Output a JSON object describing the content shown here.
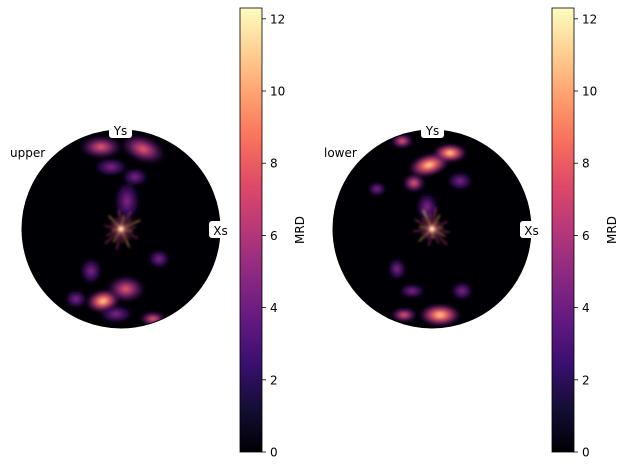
{
  "chart_data": [
    {
      "type": "heatmap",
      "projection": "pole figure (circular, stereographic)",
      "label": "upper",
      "axis_labels": [
        "Xs",
        "Ys"
      ],
      "colorbar": {
        "label": "MRD",
        "colormap": "magma",
        "range": [
          0,
          12.3
        ],
        "ticks": [
          0,
          2,
          4,
          6,
          8,
          10,
          12
        ]
      },
      "hotspots": [
        {
          "position": "bottom-left",
          "intensity": 10
        },
        {
          "position": "bottom-center",
          "intensity": 8
        },
        {
          "position": "top-center",
          "intensity": 6
        },
        {
          "position": "top-right",
          "intensity": 6
        },
        {
          "position": "center",
          "intensity": 12
        }
      ]
    },
    {
      "type": "heatmap",
      "projection": "pole figure (circular, stereographic)",
      "label": "lower",
      "axis_labels": [
        "Xs",
        "Ys"
      ],
      "colorbar": {
        "label": "MRD",
        "colormap": "magma",
        "range": [
          0,
          12.3
        ],
        "ticks": [
          0,
          2,
          4,
          6,
          8,
          10,
          12
        ]
      },
      "hotspots": [
        {
          "position": "top-center",
          "intensity": 9
        },
        {
          "position": "top-right",
          "intensity": 9
        },
        {
          "position": "bottom-center",
          "intensity": 9
        },
        {
          "position": "upper-left",
          "intensity": 6
        },
        {
          "position": "center",
          "intensity": 12
        }
      ]
    }
  ],
  "panels": [
    {
      "label": "upper",
      "x_axis": "Xs",
      "y_axis": "Ys",
      "colorbar_label": "MRD",
      "colorbar_ticks": [
        "0",
        "2",
        "4",
        "6",
        "8",
        "10",
        "12"
      ]
    },
    {
      "label": "lower",
      "x_axis": "Xs",
      "y_axis": "Ys",
      "colorbar_label": "MRD",
      "colorbar_ticks": [
        "0",
        "2",
        "4",
        "6",
        "8",
        "10",
        "12"
      ]
    }
  ]
}
